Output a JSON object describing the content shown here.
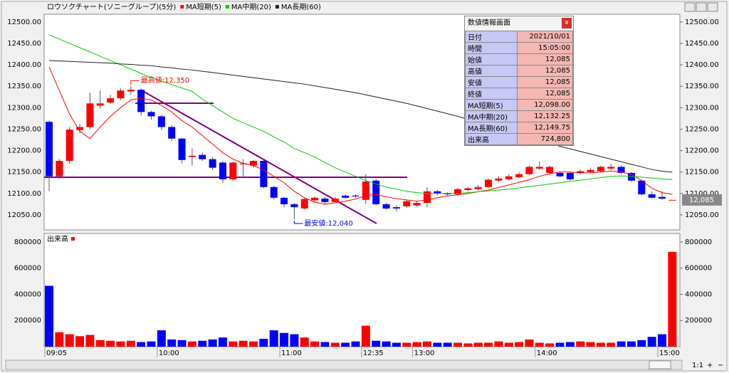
{
  "chart_data": [
    {
      "type": "candlestick",
      "title": "ロウソクチャート(ソニーグループ)(5分)",
      "open": [
        12267,
        12140,
        12176,
        12248,
        12255,
        12305,
        12312,
        12322,
        12338,
        12342,
        12290,
        12280,
        12255,
        12228,
        12185,
        12190,
        12180,
        12172,
        12133,
        12168,
        12165,
        12176,
        12115,
        12090,
        12075,
        12065,
        12084,
        12088,
        12080,
        12095,
        12095,
        12085,
        12130,
        12075,
        12068,
        12070,
        12072,
        12078,
        12105,
        12100,
        12098,
        12108,
        12110,
        12115,
        12130,
        12133,
        12138,
        12145,
        12158,
        12148,
        12148,
        12148,
        12148,
        12150,
        12152,
        12158,
        12162,
        12148,
        12130,
        12098,
        12092,
        12085
      ],
      "high": [
        12270,
        12180,
        12255,
        12262,
        12335,
        12340,
        12330,
        12345,
        12350,
        12345,
        12293,
        12283,
        12258,
        12230,
        12205,
        12195,
        12185,
        12176,
        12175,
        12180,
        12178,
        12180,
        12118,
        12092,
        12078,
        12090,
        12093,
        12092,
        12092,
        12098,
        12098,
        12145,
        12133,
        12078,
        12072,
        12085,
        12082,
        12115,
        12108,
        12103,
        12113,
        12115,
        12120,
        12135,
        12140,
        12145,
        12150,
        12165,
        12175,
        12165,
        12152,
        12150,
        12155,
        12160,
        12165,
        12170,
        12165,
        12150,
        12132,
        12105,
        12105,
        12085
      ],
      "low": [
        12105,
        12135,
        12170,
        12240,
        12250,
        12298,
        12308,
        12318,
        12330,
        12282,
        12272,
        12248,
        12222,
        12170,
        12165,
        12176,
        12155,
        12125,
        12130,
        12140,
        12160,
        12112,
        12086,
        12068,
        12040,
        12062,
        12080,
        12075,
        12078,
        12088,
        12090,
        12075,
        12072,
        12062,
        12058,
        12066,
        12068,
        12068,
        12096,
        12095,
        12095,
        12105,
        12108,
        12112,
        12127,
        12130,
        12135,
        12142,
        12155,
        12145,
        12138,
        12130,
        12145,
        12147,
        12150,
        12155,
        12145,
        12127,
        12095,
        12088,
        12085,
        12085
      ],
      "close": [
        12140,
        12176,
        12249,
        12255,
        12310,
        12310,
        12322,
        12340,
        12342,
        12290,
        12280,
        12255,
        12228,
        12178,
        12188,
        12180,
        12160,
        12133,
        12172,
        12170,
        12176,
        12115,
        12090,
        12075,
        12068,
        12087,
        12090,
        12080,
        12088,
        12090,
        12093,
        12128,
        12075,
        12065,
        12065,
        12082,
        12078,
        12105,
        12100,
        12098,
        12110,
        12112,
        12115,
        12132,
        12135,
        12140,
        12145,
        12162,
        12162,
        12162,
        12140,
        12133,
        12152,
        12155,
        12162,
        12162,
        12148,
        12130,
        12098,
        12090,
        12088,
        12085
      ],
      "up_color": "#ff0000",
      "down_color": "#0000ff",
      "series": [
        {
          "name": "MA短期(5)",
          "color": "#ff0000",
          "values": [
            12395,
            12340,
            12285,
            12245,
            12228,
            12255,
            12280,
            12300,
            12318,
            12322,
            12318,
            12305,
            12290,
            12270,
            12255,
            12235,
            12215,
            12195,
            12180,
            12170,
            12165,
            12155,
            12140,
            12125,
            12105,
            12090,
            12080,
            12075,
            12078,
            12082,
            12087,
            12095,
            12098,
            12092,
            12088,
            12085,
            12082,
            12085,
            12090,
            12094,
            12097,
            12100,
            12104,
            12108,
            12114,
            12120,
            12126,
            12132,
            12140,
            12146,
            12150,
            12150,
            12148,
            12148,
            12150,
            12152,
            12150,
            12145,
            12130,
            12112,
            12102,
            12098
          ]
        },
        {
          "name": "MA中期(20)",
          "color": "#00cc00",
          "values": [
            12470,
            12460,
            12450,
            12440,
            12430,
            12420,
            12410,
            12400,
            12390,
            12380,
            12370,
            12362,
            12354,
            12346,
            12338,
            12320,
            12305,
            12290,
            12275,
            12265,
            12255,
            12245,
            12232,
            12220,
            12205,
            12195,
            12185,
            12172,
            12160,
            12150,
            12140,
            12130,
            12122,
            12115,
            12110,
            12105,
            12102,
            12100,
            12100,
            12100,
            12100,
            12102,
            12104,
            12106,
            12108,
            12110,
            12113,
            12116,
            12119,
            12122,
            12125,
            12128,
            12131,
            12134,
            12137,
            12140,
            12141,
            12140,
            12138,
            12136,
            12134,
            12132.25
          ]
        },
        {
          "name": "MA長期(60)",
          "color": "#222222",
          "values": [
            12410,
            12409,
            12408,
            12407,
            12406,
            12405,
            12404,
            12402,
            12401,
            12399,
            12398,
            12395,
            12393,
            12390,
            12388,
            12385,
            12382,
            12379,
            12376,
            12373,
            12370,
            12367,
            12364,
            12361,
            12358,
            12355,
            12351,
            12347,
            12343,
            12339,
            12335,
            12330,
            12325,
            12320,
            12315,
            12310,
            12304,
            12298,
            12292,
            12286,
            12280,
            12273,
            12266,
            12259,
            12252,
            12245,
            12238,
            12231,
            12224,
            12217,
            12210,
            12204,
            12198,
            12192,
            12186,
            12180,
            12174,
            12168,
            12162,
            12156,
            12152,
            12149.75
          ]
        }
      ],
      "ylim": [
        12015,
        12518
      ],
      "yticks": [
        {
          "value": 12050,
          "label": "12050.00"
        },
        {
          "value": 12100,
          "label": "12100.00"
        },
        {
          "value": 12150,
          "label": "12150.00"
        },
        {
          "value": 12200,
          "label": "12200.00"
        },
        {
          "value": 12250,
          "label": "12250.00"
        },
        {
          "value": 12300,
          "label": "12300.00"
        },
        {
          "value": 12350,
          "label": "12350.00"
        },
        {
          "value": 12400,
          "label": "12400.00"
        },
        {
          "value": 12450,
          "label": "12450.00"
        },
        {
          "value": 12500,
          "label": "12500.00"
        }
      ],
      "annotations": [
        {
          "text": "最高値:12,350",
          "value": 12350,
          "color": "#ff0000"
        },
        {
          "text": "最安値:12,040",
          "value": 12040,
          "color": "#0000ff"
        }
      ],
      "last_price": {
        "value": 12085,
        "label": "12,085"
      }
    },
    {
      "type": "bar",
      "title": "出来高",
      "categories": [
        "09:05",
        null,
        null,
        null,
        null,
        null,
        null,
        null,
        null,
        null,
        null,
        "10:00",
        null,
        null,
        null,
        null,
        null,
        null,
        null,
        null,
        null,
        null,
        null,
        "11:00",
        null,
        null,
        null,
        null,
        null,
        null,
        null,
        "12:35",
        null,
        null,
        null,
        null,
        "13:00",
        null,
        null,
        null,
        null,
        null,
        null,
        null,
        null,
        null,
        null,
        null,
        "14:00",
        null,
        null,
        null,
        null,
        null,
        null,
        null,
        null,
        null,
        null,
        null,
        "15:00",
        null
      ],
      "values": [
        465000,
        110000,
        95000,
        80000,
        90000,
        50000,
        45000,
        40000,
        45000,
        35000,
        40000,
        125000,
        55000,
        50000,
        40000,
        45000,
        55000,
        70000,
        40000,
        45000,
        40000,
        60000,
        125000,
        105000,
        95000,
        70000,
        40000,
        35000,
        30000,
        30000,
        40000,
        160000,
        45000,
        40000,
        30000,
        30000,
        35000,
        40000,
        30000,
        30000,
        30000,
        25000,
        30000,
        30000,
        40000,
        30000,
        35000,
        55000,
        30000,
        25000,
        30000,
        35000,
        40000,
        35000,
        30000,
        30000,
        40000,
        40000,
        50000,
        75000,
        95000,
        724800
      ],
      "ylim": [
        0,
        865000
      ],
      "yticks": [
        200000,
        400000,
        600000,
        800000
      ]
    }
  ],
  "info_panel": {
    "title": "数値情報画面",
    "close": "x",
    "rows": [
      [
        "日付",
        "2021/10/01"
      ],
      [
        "時間",
        "15:05:00"
      ],
      [
        "始値",
        "12,085"
      ],
      [
        "高値",
        "12,085"
      ],
      [
        "安値",
        "12,085"
      ],
      [
        "終値",
        "12,085"
      ],
      [
        "MA短期(5)",
        "12,098.00"
      ],
      [
        "MA中期(20)",
        "12,132.25"
      ],
      [
        "MA長期(60)",
        "12,149.75"
      ],
      [
        "出来高",
        "724,800"
      ]
    ]
  },
  "zoom": {
    "ratio": "1:1",
    "plus": "+",
    "minus": "−"
  }
}
